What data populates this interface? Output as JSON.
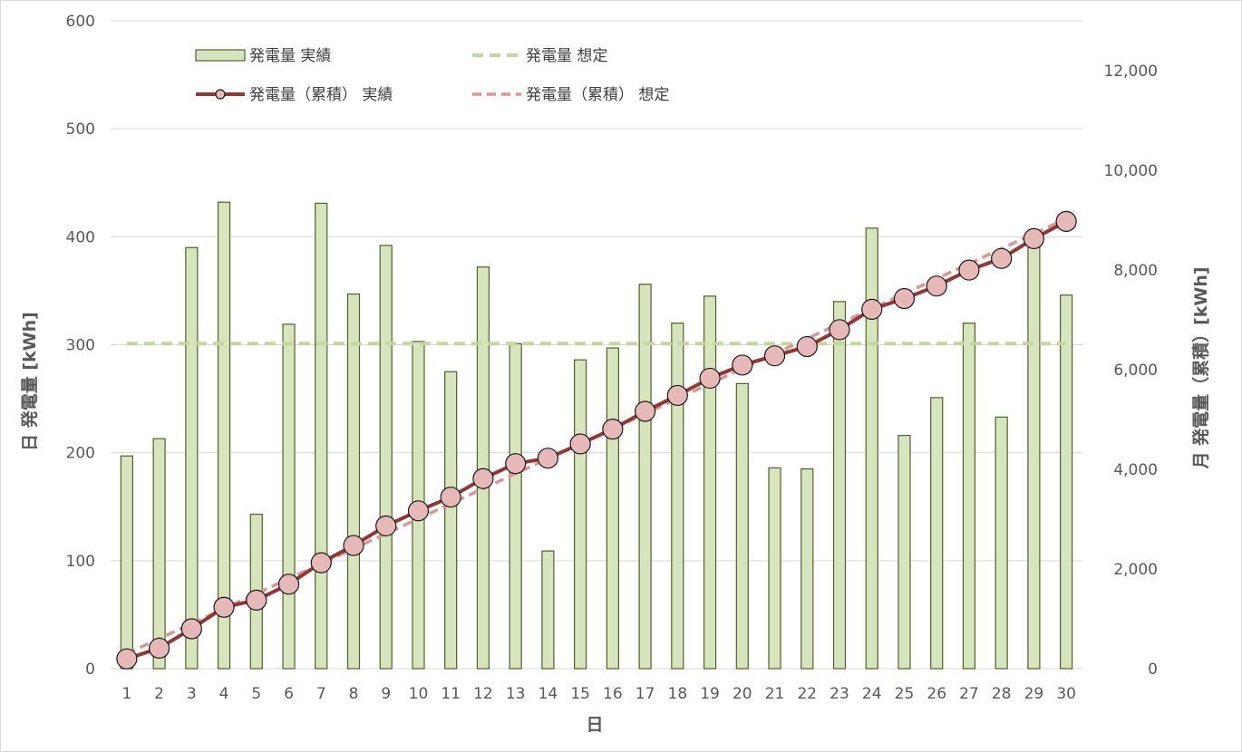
{
  "chart_data": {
    "type": "bar",
    "xlabel": "日",
    "ylabel": "日 発電量 [kWh]",
    "y2label": "月 発電量（累積）[kWh]",
    "ylim": [
      0,
      600
    ],
    "y2lim": [
      0,
      13000
    ],
    "yticks": [
      0,
      100,
      200,
      300,
      400,
      500,
      600
    ],
    "y2ticks": [
      0,
      2000,
      4000,
      6000,
      8000,
      10000,
      12000
    ],
    "y2tick_labels": [
      "0",
      "2,000",
      "4,000",
      "6,000",
      "8,000",
      "10,000",
      "12,000"
    ],
    "grid": true,
    "legend_position": "top-left",
    "categories": [
      "1",
      "2",
      "3",
      "4",
      "5",
      "6",
      "7",
      "8",
      "9",
      "10",
      "11",
      "12",
      "13",
      "14",
      "15",
      "16",
      "17",
      "18",
      "19",
      "20",
      "21",
      "22",
      "23",
      "24",
      "25",
      "26",
      "27",
      "28",
      "29",
      "30"
    ],
    "series": [
      {
        "name": "発電量 実績",
        "kind": "bar",
        "axis": "left",
        "color": "#d7e4bd",
        "stroke": "#4f6228",
        "values": [
          197,
          213,
          390,
          432,
          143,
          319,
          431,
          347,
          392,
          303,
          275,
          372,
          301,
          109,
          286,
          297,
          356,
          320,
          345,
          264,
          186,
          185,
          340,
          408,
          216,
          251,
          320,
          233,
          398,
          346
        ]
      },
      {
        "name": "発電量 想定",
        "kind": "line",
        "style": "dashed",
        "axis": "left",
        "color": "#c3d69b",
        "values": [
          301,
          301,
          301,
          301,
          301,
          301,
          301,
          301,
          301,
          301,
          301,
          301,
          301,
          301,
          301,
          301,
          301,
          301,
          301,
          301,
          301,
          301,
          301,
          301,
          301,
          301,
          301,
          301,
          301,
          301
        ]
      },
      {
        "name": "発電量（累積） 実績",
        "kind": "line",
        "markers": true,
        "axis": "right",
        "color": "#943634",
        "marker_fill": "#e6b9b8",
        "values": [
          197,
          410,
          800,
          1232,
          1375,
          1694,
          2125,
          2472,
          2864,
          3167,
          3442,
          3814,
          4115,
          4224,
          4510,
          4807,
          5163,
          5483,
          5828,
          6092,
          6278,
          6463,
          6803,
          7211,
          7427,
          7678,
          7998,
          8231,
          8629,
          8975
        ]
      },
      {
        "name": "発電量（累積） 想定",
        "kind": "line",
        "style": "dashed",
        "axis": "right",
        "color": "#d99694",
        "values": [
          301,
          602,
          903,
          1204,
          1505,
          1806,
          2107,
          2408,
          2709,
          3010,
          3311,
          3612,
          3913,
          4214,
          4515,
          4816,
          5117,
          5418,
          5719,
          6020,
          6321,
          6622,
          6923,
          7224,
          7525,
          7826,
          8127,
          8428,
          8729,
          9030
        ]
      }
    ]
  }
}
